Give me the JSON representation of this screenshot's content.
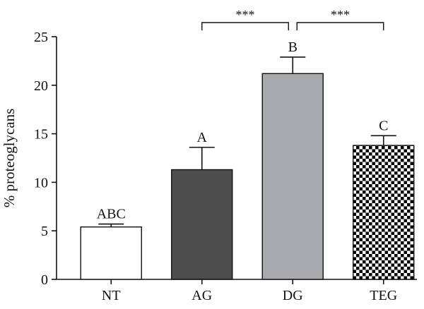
{
  "chart_data": {
    "type": "bar",
    "title": "",
    "xlabel": "",
    "ylabel": "% proteoglycans",
    "ylim": [
      0,
      25
    ],
    "yticks": [
      0,
      5,
      10,
      15,
      20,
      25
    ],
    "grid": false,
    "legend": "none",
    "categories": [
      "NT",
      "AG",
      "DG",
      "TEG"
    ],
    "values": [
      5.4,
      11.3,
      21.2,
      13.8
    ],
    "errors": [
      0.3,
      2.3,
      1.7,
      1.0
    ],
    "bar_labels": [
      "ABC",
      "A",
      "B",
      "C"
    ],
    "fills": [
      "white",
      "#4d4d4d",
      "#a9aaae",
      "checkerboard"
    ],
    "significance": [
      {
        "from": "AG",
        "to": "DG",
        "label": "***"
      },
      {
        "from": "DG",
        "to": "TEG",
        "label": "***"
      }
    ]
  }
}
